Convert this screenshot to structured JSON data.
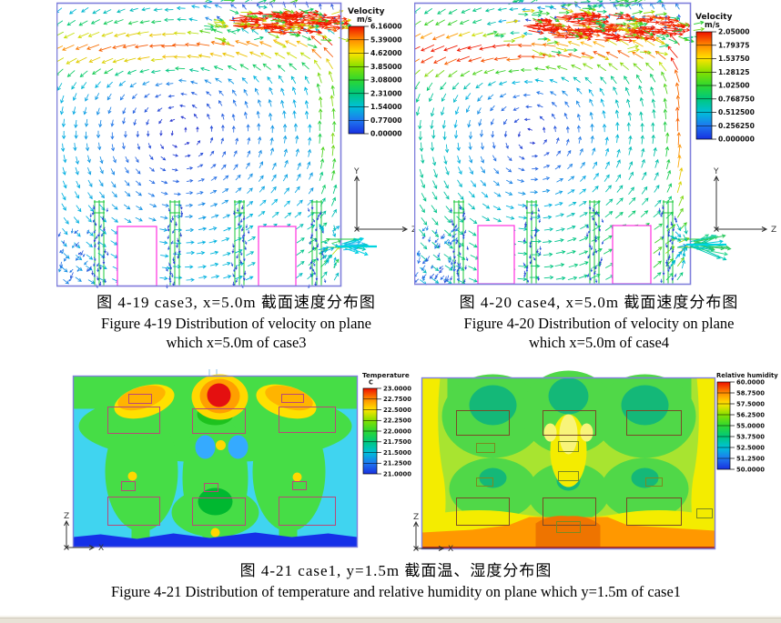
{
  "figures": {
    "fig19": {
      "caption_zh": "图 4-19  case3, x=5.0m 截面速度分布图",
      "caption_en_line1": "Figure 4-19 Distribution of velocity on plane",
      "caption_en_line2": "which x=5.0m of case3"
    },
    "fig20": {
      "caption_zh": "图 4-20  case4, x=5.0m 截面速度分布图",
      "caption_en_line1": "Figure 4-20 Distribution of velocity on plane",
      "caption_en_line2": "which x=5.0m of case4"
    },
    "fig21": {
      "caption_zh": "图 4-21  case1, y=1.5m 截面温、湿度分布图",
      "caption_en": "Figure 4-21 Distribution of temperature and relative humidity on plane which y=1.5m of case1"
    }
  },
  "legends": {
    "velocity_case3": {
      "title": "Velocity",
      "unit": "m/s",
      "ticks": [
        "6.16000",
        "5.39000",
        "4.62000",
        "3.85000",
        "3.08000",
        "2.31000",
        "1.54000",
        "0.77000",
        "0.00000"
      ]
    },
    "velocity_case4": {
      "title": "Velocity",
      "unit": "m/s",
      "ticks": [
        "2.05000",
        "1.79375",
        "1.53750",
        "1.28125",
        "1.02500",
        "0.768750",
        "0.512500",
        "0.256250",
        "0.000000"
      ]
    },
    "temperature": {
      "title": "Temperature",
      "unit": "C",
      "ticks": [
        "23.0000",
        "22.7500",
        "22.5000",
        "22.2500",
        "22.0000",
        "21.7500",
        "21.5000",
        "21.2500",
        "21.0000"
      ]
    },
    "humidity": {
      "title": "Relative humidity",
      "unit": "",
      "ticks": [
        "60.0000",
        "58.7500",
        "57.5000",
        "56.2500",
        "55.0000",
        "53.7500",
        "52.5000",
        "51.2500",
        "50.0000"
      ]
    }
  },
  "axes": {
    "vector": {
      "up": "Y",
      "right": "Z",
      "origin": "x"
    },
    "contour": {
      "up": "Z",
      "right": "X",
      "origin": "x"
    }
  },
  "theme": {
    "rainbow": [
      "#ee1000",
      "#ff8c00",
      "#ffe400",
      "#86e000",
      "#2ed830",
      "#00c87c",
      "#00c0d8",
      "#1e78f0",
      "#1830e0"
    ],
    "plot_border": "#8080dc",
    "box_outline": "#ff30e0",
    "plant_green": "#18c838",
    "contour_box_temp": "#b84878",
    "contour_box_hum": "#7a4a28",
    "contour_box_small_hum": "#7a8a20",
    "strip_color": "#e7e2d6"
  },
  "chart_data": [
    {
      "id": "figure-4-19",
      "type": "vector-field",
      "case": "case3",
      "plane": "x=5.0m",
      "variable": "velocity",
      "unit": "m/s",
      "range": [
        0.0,
        6.16
      ],
      "colorbar_ticks": [
        6.16,
        5.39,
        4.62,
        3.85,
        3.08,
        2.31,
        1.54,
        0.77,
        0.0
      ],
      "features": [
        "high-speed supply jet at ceiling right (red/orange arrows)",
        "leftward return flow under ceiling (cyan arrows)",
        "large slow recirculation vortex in room core (blue arrows)",
        "two white boxes (beds/benches, magenta outline) on floor",
        "four green plant canopies between boxes",
        "exhaust outlet on right wall near floor with cyan outflow fan"
      ]
    },
    {
      "id": "figure-4-20",
      "type": "vector-field",
      "case": "case4",
      "plane": "x=5.0m",
      "variable": "velocity",
      "unit": "m/s",
      "range": [
        0.0,
        2.05
      ],
      "colorbar_ticks": [
        2.05,
        1.79375,
        1.5375,
        1.28125,
        1.025,
        0.76875,
        0.5125,
        0.25625,
        0.0
      ],
      "features": [
        "wide supply jet at ceiling right (red/orange arrows)",
        "strong curved recirculation along left wall and ceiling",
        "two white boxes with magenta outline on floor",
        "four green plant canopies",
        "green/cyan exhaust outflow fan at lower right wall"
      ]
    },
    {
      "id": "figure-4-21-temperature",
      "type": "contour",
      "case": "case1",
      "plane": "y=1.5m",
      "variable": "temperature",
      "unit": "C",
      "range": [
        21.0,
        23.0
      ],
      "colorbar_ticks": [
        23.0,
        22.75,
        22.5,
        22.25,
        22.0,
        21.75,
        21.5,
        21.25,
        21.0
      ],
      "features": [
        "cyan background about 21.25-21.5 C",
        "green regions about 22 C around six outlined equipment boxes (2 rows x 3 columns)",
        "hot red spot about 23 C at top center with orange/yellow rings",
        "orange warm arcs at top left and top right",
        "two small light-blue cool pockets near center",
        "dark blue cold strip about 21 C along bottom edge"
      ]
    },
    {
      "id": "figure-4-21-humidity",
      "type": "contour",
      "case": "case1",
      "plane": "y=1.5m",
      "variable": "relative humidity",
      "unit": "%",
      "range": [
        50.0,
        60.0
      ],
      "colorbar_ticks": [
        60.0,
        58.75,
        57.5,
        56.25,
        55.0,
        53.75,
        52.5,
        51.25,
        50.0
      ],
      "features": [
        "green field about 55-56% over most of plane",
        "darker green humid spots above six outlined boxes",
        "yellow drier bands on left, right and lower part (about 53%)",
        "orange dry band about 52% along bottom with darker core at bottom center"
      ]
    }
  ]
}
